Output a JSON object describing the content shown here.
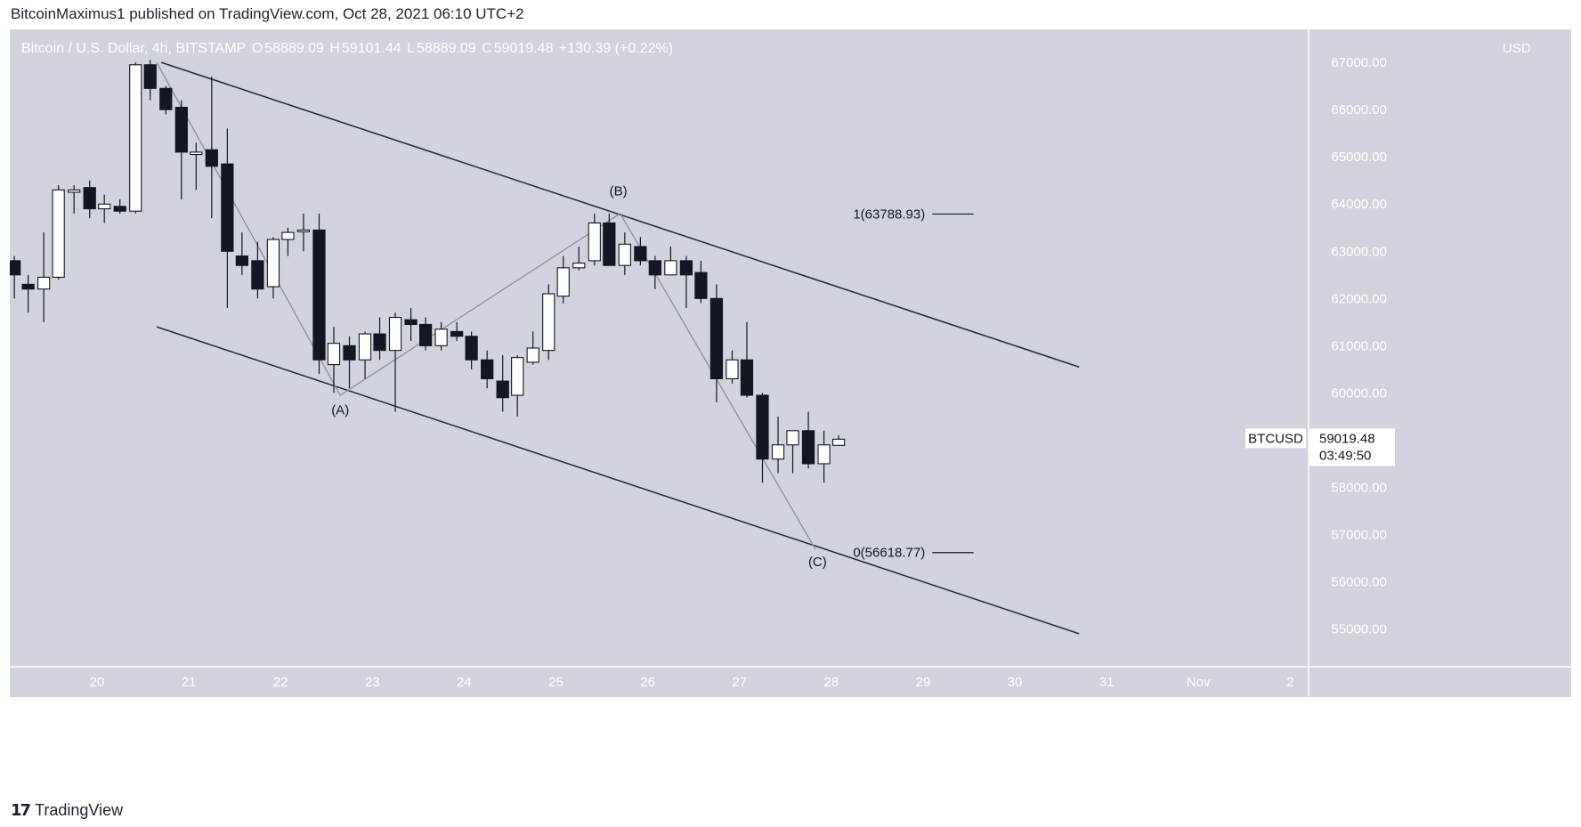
{
  "header": {
    "published_line": "BitcoinMaximus1 published on TradingView.com, Oct 28, 2021 06:10 UTC+2"
  },
  "legend": {
    "symbol_desc": "Bitcoin / U.S. Dollar, 4h, BITSTAMP",
    "open_key": "O",
    "open": "58889.09",
    "high_key": "H",
    "high": "59101.44",
    "low_key": "L",
    "low": "58889.09",
    "close_key": "C",
    "close": "59019.48",
    "change": "+130.39 (+0.22%)"
  },
  "currency_label": "USD",
  "footer": {
    "brand": "TradingView"
  },
  "colors": {
    "background": "#d1d4dc",
    "axis_bg": "#d1d4dc",
    "candle_up_fill": "#ffffff",
    "candle_down_fill": "#131722",
    "channel_line": "#2a2e39",
    "wave_line": "#8c8f96"
  },
  "chart_data": {
    "type": "candlestick",
    "title": "Bitcoin / U.S. Dollar, 4h, BITSTAMP",
    "ylim": [
      54200,
      67700
    ],
    "y_ticks": [
      "55000.00",
      "56000.00",
      "57000.00",
      "58000.00",
      "59000.00",
      "60000.00",
      "61000.00",
      "62000.00",
      "63000.00",
      "64000.00",
      "65000.00",
      "66000.00",
      "67000.00"
    ],
    "x_ticks": [
      "20",
      "21",
      "22",
      "23",
      "24",
      "25",
      "26",
      "27",
      "28",
      "29",
      "30",
      "31",
      "Nov",
      "2"
    ],
    "x_tick_days": [
      20,
      21,
      22,
      23,
      24,
      25,
      26,
      27,
      28,
      29,
      30,
      31,
      32,
      33
    ],
    "xlim_days": [
      19.05,
      33.2
    ],
    "candles": [
      {
        "t": 19.1,
        "o": 62800,
        "h": 62900,
        "l": 62000,
        "c": 62500
      },
      {
        "t": 19.25,
        "o": 62300,
        "h": 62500,
        "l": 61700,
        "c": 62200
      },
      {
        "t": 19.42,
        "o": 62200,
        "h": 63400,
        "l": 61500,
        "c": 62450
      },
      {
        "t": 19.58,
        "o": 62450,
        "h": 64400,
        "l": 62400,
        "c": 64300
      },
      {
        "t": 19.75,
        "o": 64250,
        "h": 64400,
        "l": 63800,
        "c": 64300
      },
      {
        "t": 19.92,
        "o": 64350,
        "h": 64500,
        "l": 63700,
        "c": 63900
      },
      {
        "t": 20.08,
        "o": 63900,
        "h": 64200,
        "l": 63600,
        "c": 64000
      },
      {
        "t": 20.25,
        "o": 63950,
        "h": 64100,
        "l": 63800,
        "c": 63850
      },
      {
        "t": 20.42,
        "o": 63850,
        "h": 67000,
        "l": 63800,
        "c": 66950
      },
      {
        "t": 20.58,
        "o": 66950,
        "h": 67050,
        "l": 66200,
        "c": 66450
      },
      {
        "t": 20.75,
        "o": 66450,
        "h": 66500,
        "l": 65900,
        "c": 66000
      },
      {
        "t": 20.92,
        "o": 66050,
        "h": 66200,
        "l": 64100,
        "c": 65100
      },
      {
        "t": 21.08,
        "o": 65050,
        "h": 65300,
        "l": 64300,
        "c": 65100
      },
      {
        "t": 21.25,
        "o": 65150,
        "h": 66700,
        "l": 63700,
        "c": 64800
      },
      {
        "t": 21.42,
        "o": 64850,
        "h": 65600,
        "l": 61800,
        "c": 63000
      },
      {
        "t": 21.58,
        "o": 62900,
        "h": 63400,
        "l": 62500,
        "c": 62700
      },
      {
        "t": 21.75,
        "o": 62800,
        "h": 63200,
        "l": 62000,
        "c": 62200
      },
      {
        "t": 21.92,
        "o": 62250,
        "h": 63300,
        "l": 62000,
        "c": 63250
      },
      {
        "t": 22.08,
        "o": 63250,
        "h": 63500,
        "l": 62900,
        "c": 63400
      },
      {
        "t": 22.25,
        "o": 63450,
        "h": 63800,
        "l": 63000,
        "c": 63450
      },
      {
        "t": 22.42,
        "o": 63450,
        "h": 63800,
        "l": 60400,
        "c": 60700
      },
      {
        "t": 22.58,
        "o": 60600,
        "h": 61400,
        "l": 60000,
        "c": 61050
      },
      {
        "t": 22.75,
        "o": 61000,
        "h": 61200,
        "l": 60100,
        "c": 60700
      },
      {
        "t": 22.92,
        "o": 60700,
        "h": 61300,
        "l": 60300,
        "c": 61250
      },
      {
        "t": 23.08,
        "o": 61250,
        "h": 61600,
        "l": 60700,
        "c": 60900
      },
      {
        "t": 23.25,
        "o": 60900,
        "h": 61700,
        "l": 59600,
        "c": 61600
      },
      {
        "t": 23.42,
        "o": 61550,
        "h": 61800,
        "l": 61100,
        "c": 61450
      },
      {
        "t": 23.58,
        "o": 61450,
        "h": 61600,
        "l": 60900,
        "c": 61000
      },
      {
        "t": 23.75,
        "o": 61000,
        "h": 61500,
        "l": 60900,
        "c": 61350
      },
      {
        "t": 23.92,
        "o": 61300,
        "h": 61500,
        "l": 61100,
        "c": 61200
      },
      {
        "t": 24.08,
        "o": 61200,
        "h": 61300,
        "l": 60500,
        "c": 60700
      },
      {
        "t": 24.25,
        "o": 60700,
        "h": 60900,
        "l": 60100,
        "c": 60300
      },
      {
        "t": 24.42,
        "o": 60250,
        "h": 60800,
        "l": 59600,
        "c": 59900
      },
      {
        "t": 24.58,
        "o": 59950,
        "h": 60800,
        "l": 59500,
        "c": 60750
      },
      {
        "t": 24.75,
        "o": 60650,
        "h": 61300,
        "l": 60600,
        "c": 60950
      },
      {
        "t": 24.92,
        "o": 60900,
        "h": 62300,
        "l": 60700,
        "c": 62100
      },
      {
        "t": 25.08,
        "o": 62050,
        "h": 62900,
        "l": 61900,
        "c": 62650
      },
      {
        "t": 25.25,
        "o": 62650,
        "h": 63100,
        "l": 62600,
        "c": 62750
      },
      {
        "t": 25.42,
        "o": 62800,
        "h": 63800,
        "l": 62700,
        "c": 63600
      },
      {
        "t": 25.58,
        "o": 63600,
        "h": 63800,
        "l": 62700,
        "c": 62700
      },
      {
        "t": 25.75,
        "o": 62700,
        "h": 63400,
        "l": 62500,
        "c": 63150
      },
      {
        "t": 25.92,
        "o": 63100,
        "h": 63300,
        "l": 62700,
        "c": 62800
      },
      {
        "t": 26.08,
        "o": 62800,
        "h": 62900,
        "l": 62200,
        "c": 62500
      },
      {
        "t": 26.25,
        "o": 62500,
        "h": 63100,
        "l": 62500,
        "c": 62800
      },
      {
        "t": 26.42,
        "o": 62800,
        "h": 62900,
        "l": 61800,
        "c": 62500
      },
      {
        "t": 26.58,
        "o": 62550,
        "h": 62800,
        "l": 61900,
        "c": 62000
      },
      {
        "t": 26.75,
        "o": 62000,
        "h": 62300,
        "l": 59800,
        "c": 60300
      },
      {
        "t": 26.92,
        "o": 60300,
        "h": 60900,
        "l": 60200,
        "c": 60700
      },
      {
        "t": 27.08,
        "o": 60700,
        "h": 61500,
        "l": 59900,
        "c": 59950
      },
      {
        "t": 27.25,
        "o": 59950,
        "h": 60000,
        "l": 58100,
        "c": 58600
      },
      {
        "t": 27.42,
        "o": 58600,
        "h": 59500,
        "l": 58300,
        "c": 58900
      },
      {
        "t": 27.58,
        "o": 58900,
        "h": 59200,
        "l": 58300,
        "c": 59200
      },
      {
        "t": 27.75,
        "o": 59200,
        "h": 59600,
        "l": 58400,
        "c": 58500
      },
      {
        "t": 27.92,
        "o": 58500,
        "h": 59200,
        "l": 58100,
        "c": 58900
      },
      {
        "t": 28.08,
        "o": 58889.09,
        "h": 59101.44,
        "l": 58889.09,
        "c": 59019.48
      }
    ],
    "channel_lines": [
      {
        "name": "upper",
        "x1": 20.7,
        "y1": 67000,
        "x2": 30.7,
        "y2": 60550
      },
      {
        "name": "lower",
        "x1": 20.65,
        "y1": 61400,
        "x2": 30.7,
        "y2": 54900
      }
    ],
    "wave_path": [
      {
        "x": 20.65,
        "y": 67000
      },
      {
        "x": 22.65,
        "y": 59950
      },
      {
        "x": 25.7,
        "y": 63800
      },
      {
        "x": 27.83,
        "y": 56680
      }
    ],
    "wave_labels": [
      {
        "text": "(A)",
        "x": 22.65,
        "y": 59550
      },
      {
        "text": "(B)",
        "x": 25.68,
        "y": 64180
      },
      {
        "text": "(C)",
        "x": 27.85,
        "y": 56330
      }
    ],
    "fib_levels": [
      {
        "label": "1(63788.93)",
        "value": 63788.93,
        "x_start": 29.1,
        "x_end": 29.55
      },
      {
        "label": "0(56618.77)",
        "value": 56618.77,
        "x_start": 29.1,
        "x_end": 29.55
      }
    ],
    "price_tag": {
      "symbol": "BTCUSD",
      "price": "59019.48",
      "countdown": "03:49:50",
      "value": 59019.48
    }
  }
}
